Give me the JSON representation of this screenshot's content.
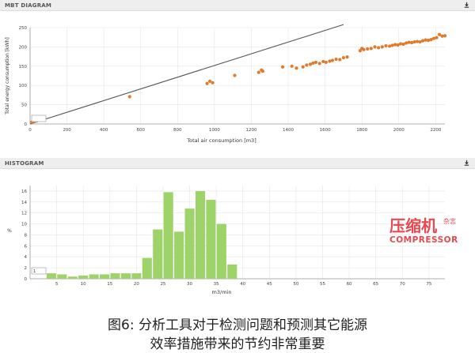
{
  "panels": {
    "mbt_title": "MBT DIAGRAM",
    "hist_title": "HISTOGRAM"
  },
  "chart_data": [
    {
      "type": "scatter",
      "title": "MBT DIAGRAM",
      "xlabel": "Total air consumption [m3]",
      "ylabel": "Total energy consumption [kWh]",
      "xlim": [
        0,
        2250
      ],
      "ylim": [
        0,
        250
      ],
      "xticks": [
        0,
        200,
        400,
        600,
        800,
        1000,
        1200,
        1400,
        1600,
        1800,
        2000,
        2200
      ],
      "yticks": [
        0,
        50,
        100,
        150,
        200,
        250
      ],
      "grid": true,
      "legend_box_text": "",
      "series": [
        {
          "color": "#e07b2e",
          "points": [
            [
              10,
              5
            ],
            [
              20,
              7
            ],
            [
              30,
              8
            ],
            [
              540,
              71
            ],
            [
              960,
              105
            ],
            [
              975,
              111
            ],
            [
              990,
              107
            ],
            [
              1110,
              126
            ],
            [
              1240,
              134
            ],
            [
              1255,
              140
            ],
            [
              1262,
              137
            ],
            [
              1370,
              148
            ],
            [
              1420,
              150
            ],
            [
              1445,
              145
            ],
            [
              1480,
              148
            ],
            [
              1500,
              153
            ],
            [
              1520,
              155
            ],
            [
              1535,
              158
            ],
            [
              1550,
              160
            ],
            [
              1570,
              157
            ],
            [
              1590,
              162
            ],
            [
              1605,
              160
            ],
            [
              1625,
              163
            ],
            [
              1640,
              165
            ],
            [
              1660,
              168
            ],
            [
              1680,
              167
            ],
            [
              1700,
              172
            ],
            [
              1720,
              174
            ],
            [
              1790,
              190
            ],
            [
              1800,
              196
            ],
            [
              1810,
              193
            ],
            [
              1830,
              195
            ],
            [
              1850,
              196
            ],
            [
              1870,
              200
            ],
            [
              1890,
              198
            ],
            [
              1910,
              200
            ],
            [
              1930,
              203
            ],
            [
              1950,
              202
            ],
            [
              1965,
              204
            ],
            [
              1980,
              206
            ],
            [
              1995,
              205
            ],
            [
              2010,
              208
            ],
            [
              2025,
              207
            ],
            [
              2040,
              210
            ],
            [
              2055,
              212
            ],
            [
              2070,
              211
            ],
            [
              2085,
              213
            ],
            [
              2100,
              214
            ],
            [
              2115,
              213
            ],
            [
              2130,
              216
            ],
            [
              2145,
              218
            ],
            [
              2160,
              217
            ],
            [
              2175,
              219
            ],
            [
              2190,
              222
            ],
            [
              2205,
              224
            ],
            [
              2220,
              232
            ],
            [
              2235,
              228
            ],
            [
              2250,
              229
            ]
          ]
        }
      ],
      "reference_line": {
        "color": "#555555",
        "x": [
          0,
          1700
        ],
        "y": [
          0,
          258
        ]
      }
    },
    {
      "type": "bar",
      "title": "HISTOGRAM",
      "xlabel": "m3/min",
      "ylabel": "%",
      "xlim": [
        0,
        78
      ],
      "ylim": [
        0,
        17
      ],
      "xticks": [
        5,
        10,
        15,
        20,
        25,
        30,
        35,
        40,
        45,
        50,
        55,
        60,
        65,
        70,
        75
      ],
      "yticks": [
        0,
        2,
        4,
        6,
        8,
        10,
        12,
        14,
        16
      ],
      "grid": true,
      "legend_box_text": "1",
      "bar_color": "#9ed36a",
      "bin_width": 1.8,
      "bins": [
        [
          4,
          1.0
        ],
        [
          6,
          0.8
        ],
        [
          8,
          0.4
        ],
        [
          10,
          0.6
        ],
        [
          12,
          0.8
        ],
        [
          14,
          0.8
        ],
        [
          16,
          1.0
        ],
        [
          18,
          1.0
        ],
        [
          20,
          1.0
        ],
        [
          22,
          3.8
        ],
        [
          24,
          9.0
        ],
        [
          26,
          15.8
        ],
        [
          28,
          8.6
        ],
        [
          30,
          12.8
        ],
        [
          32,
          16.0
        ],
        [
          34,
          14.4
        ],
        [
          36,
          10.0
        ],
        [
          38,
          2.6
        ]
      ]
    }
  ],
  "watermark": {
    "line1": "压缩机",
    "side": "杂志",
    "line2": "COMPRESSOR"
  },
  "caption": {
    "line1": "图6:  分析工具对于检测问题和预测其它能源",
    "line2": "效率措施带来的节约非常重要"
  },
  "icons": {
    "download": "download-icon"
  }
}
